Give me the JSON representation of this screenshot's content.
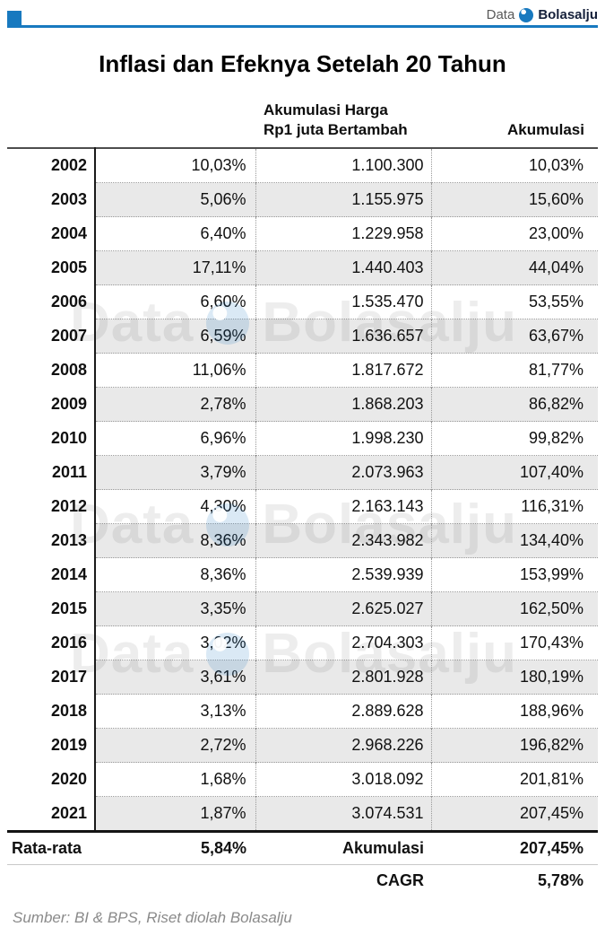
{
  "brand": {
    "prefix": "Data",
    "name": "Bolasalju",
    "accent_color": "#1879bf"
  },
  "title": "Inflasi dan Efeknya Setelah 20 Tahun",
  "table_headers": {
    "price_line1": "Akumulasi Harga",
    "price_line2": "Rp1 juta Bertambah",
    "accum": "Akumulasi"
  },
  "footer": {
    "avg_label": "Rata-rata",
    "avg_value": "5,84%",
    "accum_label": "Akumulasi",
    "accum_value": "207,45%",
    "cagr_label": "CAGR",
    "cagr_value": "5,78%"
  },
  "source": "Sumber: BI & BPS, Riset diolah Bolasalju",
  "colors": {
    "accent_blue": "#1879bf",
    "row_stripe": "#e9e9e9",
    "source_gray": "#8a8a8a"
  },
  "chart_data": {
    "type": "table",
    "title": "Inflasi dan Efeknya Setelah 20 Tahun",
    "columns": [
      "",
      "",
      "Akumulasi Harga Rp1 juta Bertambah",
      "Akumulasi"
    ],
    "rows": [
      [
        "2002",
        "10,03%",
        "1.100.300",
        "10,03%"
      ],
      [
        "2003",
        "5,06%",
        "1.155.975",
        "15,60%"
      ],
      [
        "2004",
        "6,40%",
        "1.229.958",
        "23,00%"
      ],
      [
        "2005",
        "17,11%",
        "1.440.403",
        "44,04%"
      ],
      [
        "2006",
        "6,60%",
        "1.535.470",
        "53,55%"
      ],
      [
        "2007",
        "6,59%",
        "1.636.657",
        "63,67%"
      ],
      [
        "2008",
        "11,06%",
        "1.817.672",
        "81,77%"
      ],
      [
        "2009",
        "2,78%",
        "1.868.203",
        "86,82%"
      ],
      [
        "2010",
        "6,96%",
        "1.998.230",
        "99,82%"
      ],
      [
        "2011",
        "3,79%",
        "2.073.963",
        "107,40%"
      ],
      [
        "2012",
        "4,30%",
        "2.163.143",
        "116,31%"
      ],
      [
        "2013",
        "8,36%",
        "2.343.982",
        "134,40%"
      ],
      [
        "2014",
        "8,36%",
        "2.539.939",
        "153,99%"
      ],
      [
        "2015",
        "3,35%",
        "2.625.027",
        "162,50%"
      ],
      [
        "2016",
        "3,02%",
        "2.704.303",
        "170,43%"
      ],
      [
        "2017",
        "3,61%",
        "2.801.928",
        "180,19%"
      ],
      [
        "2018",
        "3,13%",
        "2.889.628",
        "188,96%"
      ],
      [
        "2019",
        "2,72%",
        "2.968.226",
        "196,82%"
      ],
      [
        "2020",
        "1,68%",
        "3.018.092",
        "201,81%"
      ],
      [
        "2021",
        "1,87%",
        "3.074.531",
        "207,45%"
      ]
    ],
    "summary": {
      "rata_rata_inflasi": "5,84%",
      "akumulasi_total": "207,45%",
      "cagr": "5,78%"
    },
    "source": "Sumber: BI & BPS, Riset diolah Bolasalju"
  }
}
